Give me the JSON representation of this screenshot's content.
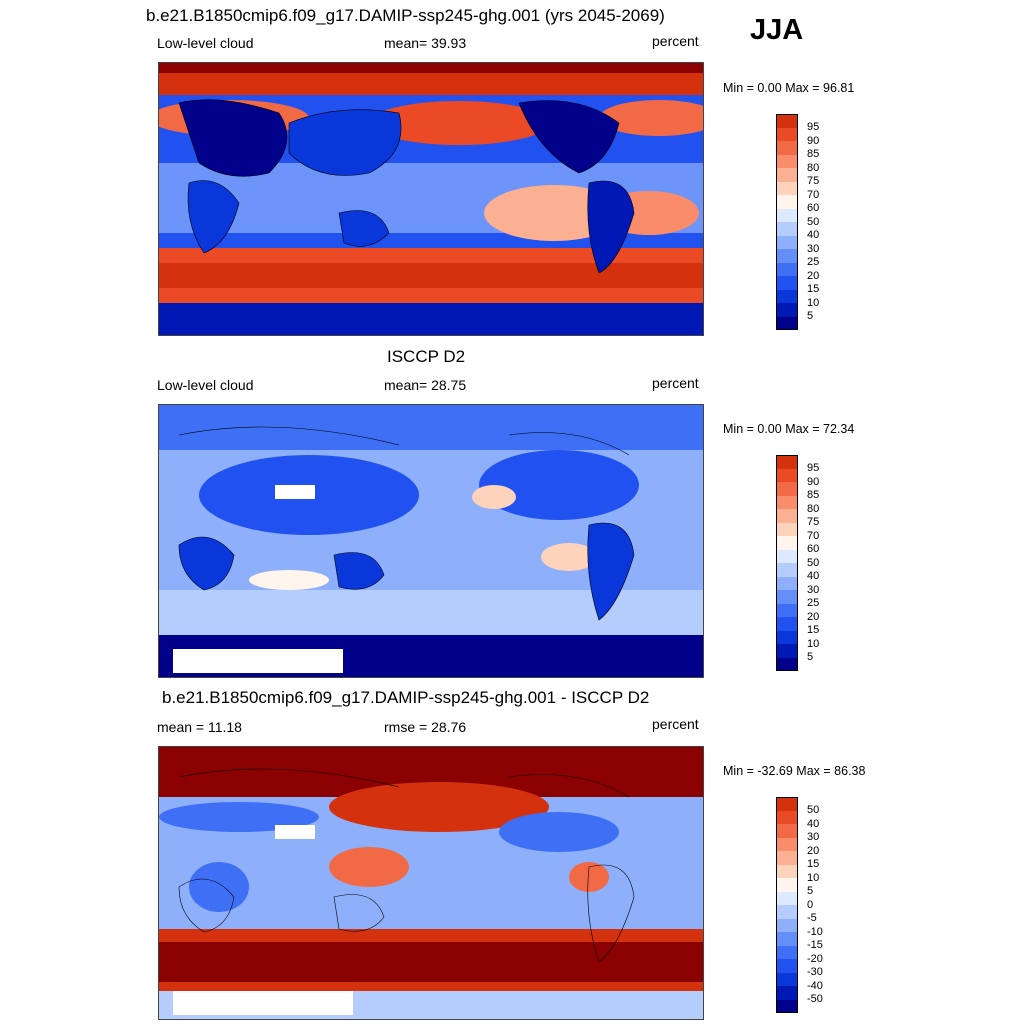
{
  "season": "JJA",
  "colors": {
    "abs_scale": [
      "#00008b",
      "#0018b4",
      "#0a37d9",
      "#2152f0",
      "#3f6ff5",
      "#648ff8",
      "#8eb0fb",
      "#b5cdfc",
      "#dde9fe",
      "#fff5ec",
      "#fed3bb",
      "#fcb092",
      "#f98d6b",
      "#f26a45",
      "#ea4a25",
      "#d4310f",
      "#b5180a",
      "#8b0000"
    ],
    "diff_scale": [
      "#00008b",
      "#0018b4",
      "#0a37d9",
      "#2152f0",
      "#3f6ff5",
      "#648ff8",
      "#8eb0fb",
      "#b5cdfc",
      "#dde9fe",
      "#fff5ec",
      "#fed3bb",
      "#fcb092",
      "#f98d6b",
      "#f26a45",
      "#ea4a25",
      "#d4310f",
      "#8b0000"
    ]
  },
  "panels": [
    {
      "title": "b.e21.B1850cmip6.f09_g17.DAMIP-ssp245-ghg.001 (yrs 2045-2069)",
      "left_label": "Low-level cloud",
      "center_label": "mean=  39.93",
      "right_label": "percent",
      "minmax": "Min =   0.00 Max =  96.81",
      "colorbar_ticks": [
        "95",
        "90",
        "85",
        "80",
        "75",
        "70",
        "60",
        "50",
        "40",
        "30",
        "25",
        "20",
        "15",
        "10",
        "5"
      ]
    },
    {
      "title": "ISCCP D2",
      "left_label": "Low-level cloud",
      "center_label": "mean=  28.75",
      "right_label": "percent",
      "minmax": "Min =   0.00 Max =  72.34",
      "colorbar_ticks": [
        "95",
        "90",
        "85",
        "80",
        "75",
        "70",
        "60",
        "50",
        "40",
        "30",
        "25",
        "20",
        "15",
        "10",
        "5"
      ]
    },
    {
      "title": "b.e21.B1850cmip6.f09_g17.DAMIP-ssp245-ghg.001 - ISCCP D2",
      "left_label": "mean =  11.18",
      "center_label": "rmse =  28.76",
      "right_label": "percent",
      "minmax": "Min = -32.69 Max =  86.38",
      "colorbar_ticks": [
        "50",
        "40",
        "30",
        "20",
        "15",
        "10",
        "5",
        "0",
        "-5",
        "-10",
        "-15",
        "-20",
        "-30",
        "-40",
        "-50"
      ]
    }
  ]
}
